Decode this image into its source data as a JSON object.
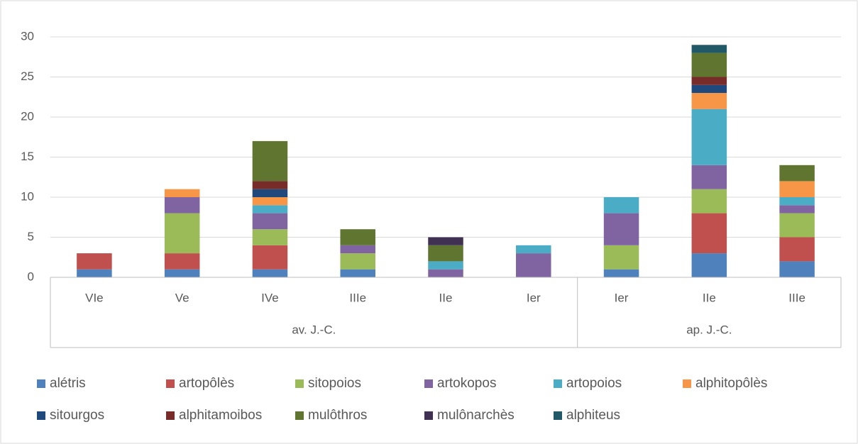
{
  "chart_data": {
    "type": "bar",
    "stacked": true,
    "groups": [
      {
        "label": "av. J.-C.",
        "categories": [
          "VIe",
          "Ve",
          "IVe",
          "IIIe",
          "IIe",
          "Ier"
        ]
      },
      {
        "label": "ap. J.-C.",
        "categories": [
          "Ier",
          "IIe",
          "IIIe"
        ]
      }
    ],
    "series": [
      {
        "name": "alétris",
        "color": "#4f81bd",
        "values": [
          1,
          1,
          1,
          1,
          0,
          0,
          1,
          3,
          2
        ]
      },
      {
        "name": "artopôlès",
        "color": "#c0504d",
        "values": [
          2,
          2,
          3,
          0,
          0,
          0,
          0,
          5,
          3
        ]
      },
      {
        "name": "sitopoios",
        "color": "#9bbb59",
        "values": [
          0,
          5,
          2,
          2,
          0,
          0,
          3,
          3,
          3
        ]
      },
      {
        "name": "artokopos",
        "color": "#8064a2",
        "values": [
          0,
          2,
          2,
          1,
          1,
          3,
          4,
          3,
          1
        ]
      },
      {
        "name": "artopoios",
        "color": "#4bacc6",
        "values": [
          0,
          0,
          1,
          0,
          1,
          1,
          2,
          7,
          1
        ]
      },
      {
        "name": "alphitopôlès",
        "color": "#f79646",
        "values": [
          0,
          1,
          1,
          0,
          0,
          0,
          0,
          2,
          2
        ]
      },
      {
        "name": "sitourgos",
        "color": "#1f497d",
        "values": [
          0,
          0,
          1,
          0,
          0,
          0,
          0,
          1,
          0
        ]
      },
      {
        "name": "alphitamoibos",
        "color": "#772c2a",
        "values": [
          0,
          0,
          1,
          0,
          0,
          0,
          0,
          1,
          0
        ]
      },
      {
        "name": "mulôthros",
        "color": "#5f7530",
        "values": [
          0,
          0,
          5,
          2,
          2,
          0,
          0,
          3,
          2
        ]
      },
      {
        "name": "mulônarchès",
        "color": "#403152",
        "values": [
          0,
          0,
          0,
          0,
          1,
          0,
          0,
          0,
          0
        ]
      },
      {
        "name": "alphiteus",
        "color": "#215968",
        "values": [
          0,
          0,
          0,
          0,
          0,
          0,
          0,
          1,
          0
        ]
      }
    ],
    "ylim": [
      0,
      30
    ],
    "yticks": [
      0,
      5,
      10,
      15,
      20,
      25,
      30
    ],
    "grid": true,
    "legend": "bottom"
  }
}
